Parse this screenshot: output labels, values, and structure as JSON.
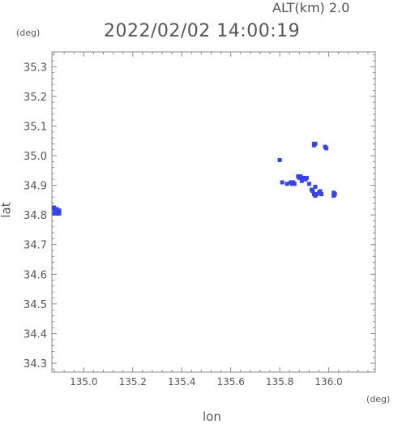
{
  "header": {
    "alt_label": "ALT(km)  2.0",
    "timestamp": "2022/02/02 14:00:19"
  },
  "colors": {
    "echo": "#3344ee",
    "axis": "#888888",
    "text": "#555555"
  },
  "chart_data": {
    "type": "scatter",
    "title": "2022/02/02 14:00:19",
    "xlabel": "lon",
    "ylabel": "lat",
    "x_unit": "(deg)",
    "y_unit": "(deg)",
    "xlim": [
      134.87,
      136.19
    ],
    "ylim": [
      34.27,
      35.35
    ],
    "x_ticks": [
      "135.0",
      "135.2",
      "135.4",
      "135.6",
      "135.8",
      "136.0"
    ],
    "x_tick_values": [
      135.0,
      135.2,
      135.4,
      135.6,
      135.8,
      136.0
    ],
    "y_ticks": [
      "34.3",
      "34.4",
      "34.5",
      "34.6",
      "34.7",
      "34.8",
      "34.9",
      "35.0",
      "35.1",
      "35.2",
      "35.3"
    ],
    "y_tick_values": [
      34.3,
      34.4,
      34.5,
      34.6,
      34.7,
      34.8,
      34.9,
      35.0,
      35.1,
      35.2,
      35.3
    ],
    "grid": false,
    "echo_cells": [
      {
        "lon": 134.875,
        "lat": 34.825
      },
      {
        "lon": 134.88,
        "lat": 34.82
      },
      {
        "lon": 134.885,
        "lat": 34.815
      },
      {
        "lon": 134.89,
        "lat": 34.81
      },
      {
        "lon": 134.895,
        "lat": 34.805
      },
      {
        "lon": 134.9,
        "lat": 34.805
      },
      {
        "lon": 134.88,
        "lat": 34.805
      },
      {
        "lon": 134.89,
        "lat": 34.82
      },
      {
        "lon": 134.9,
        "lat": 34.815
      },
      {
        "lon": 135.94,
        "lat": 35.04
      },
      {
        "lon": 135.945,
        "lat": 35.04
      },
      {
        "lon": 135.94,
        "lat": 35.035
      },
      {
        "lon": 135.985,
        "lat": 35.03
      },
      {
        "lon": 135.99,
        "lat": 35.025
      },
      {
        "lon": 135.8,
        "lat": 34.985
      },
      {
        "lon": 135.81,
        "lat": 34.91
      },
      {
        "lon": 135.83,
        "lat": 34.905
      },
      {
        "lon": 135.845,
        "lat": 34.91
      },
      {
        "lon": 135.85,
        "lat": 34.905
      },
      {
        "lon": 135.855,
        "lat": 34.91
      },
      {
        "lon": 135.86,
        "lat": 34.905
      },
      {
        "lon": 135.875,
        "lat": 34.93
      },
      {
        "lon": 135.88,
        "lat": 34.925
      },
      {
        "lon": 135.885,
        "lat": 34.93
      },
      {
        "lon": 135.895,
        "lat": 34.925
      },
      {
        "lon": 135.905,
        "lat": 34.92
      },
      {
        "lon": 135.91,
        "lat": 34.925
      },
      {
        "lon": 135.89,
        "lat": 34.915
      },
      {
        "lon": 135.92,
        "lat": 34.905
      },
      {
        "lon": 135.93,
        "lat": 34.885
      },
      {
        "lon": 135.935,
        "lat": 34.88
      },
      {
        "lon": 135.94,
        "lat": 34.87
      },
      {
        "lon": 135.945,
        "lat": 34.865
      },
      {
        "lon": 135.95,
        "lat": 34.87
      },
      {
        "lon": 135.96,
        "lat": 34.875
      },
      {
        "lon": 135.945,
        "lat": 34.895
      },
      {
        "lon": 135.965,
        "lat": 34.88
      },
      {
        "lon": 135.97,
        "lat": 34.87
      },
      {
        "lon": 136.02,
        "lat": 34.875
      },
      {
        "lon": 136.025,
        "lat": 34.87
      },
      {
        "lon": 136.02,
        "lat": 34.865
      }
    ]
  }
}
